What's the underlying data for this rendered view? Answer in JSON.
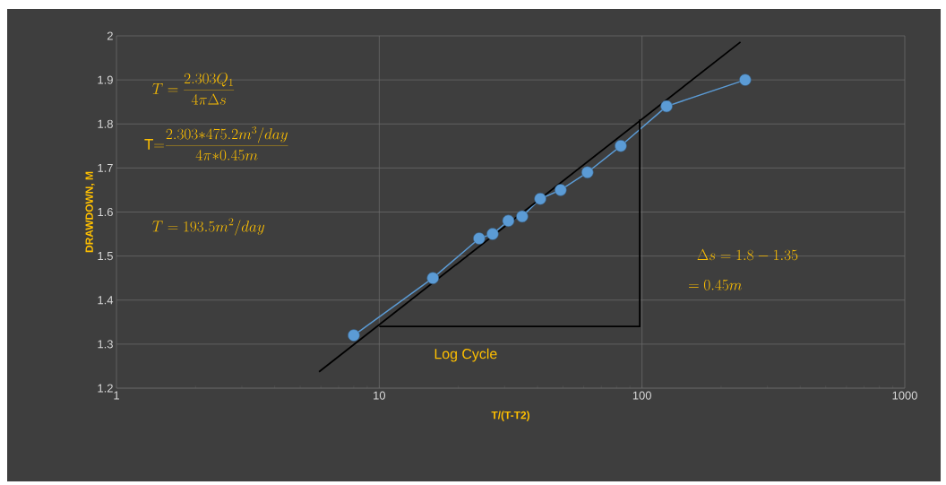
{
  "chart_data": {
    "type": "line",
    "xlabel": "T/(T-T2)",
    "ylabel": "DRAWDOWN, M",
    "log": "x",
    "xlim": [
      1,
      1000
    ],
    "xticks": [
      1,
      10,
      100,
      1000
    ],
    "ylim": [
      1.2,
      2
    ],
    "yticks": [
      1.2,
      1.3,
      1.4,
      1.5,
      1.6,
      1.7,
      1.8,
      1.9,
      2
    ],
    "grid": true,
    "series": [
      {
        "color": "#5b9bd5",
        "marker": "circle",
        "x": [
          8,
          16,
          24,
          27,
          31,
          35,
          41,
          49,
          62,
          83,
          124,
          247
        ],
        "values": [
          1.32,
          1.45,
          1.54,
          1.55,
          1.58,
          1.59,
          1.63,
          1.65,
          1.69,
          1.75,
          1.84,
          1.9
        ]
      },
      {
        "type": "line",
        "color": "#000000",
        "marker": "none",
        "x": [
          5.9,
          237
        ],
        "values": [
          1.237,
          1.986
        ]
      },
      {
        "type": "line",
        "color": "#000000",
        "marker": "none",
        "x": [
          10,
          98,
          98
        ],
        "values": [
          1.34,
          1.34,
          1.81
        ]
      }
    ],
    "annotations": [
      "T=\\frac{2.303Q_1}{4\\pi\\Delta s}",
      "\\mathrm{T}{=}\\frac{2.303{*}475.2m^3/day}{4\\pi{*}0.45m}",
      "T=193.5m^2/day",
      "Log Cycle",
      "\\Delta s=1.8-1.35",
      "=0.45m"
    ]
  }
}
